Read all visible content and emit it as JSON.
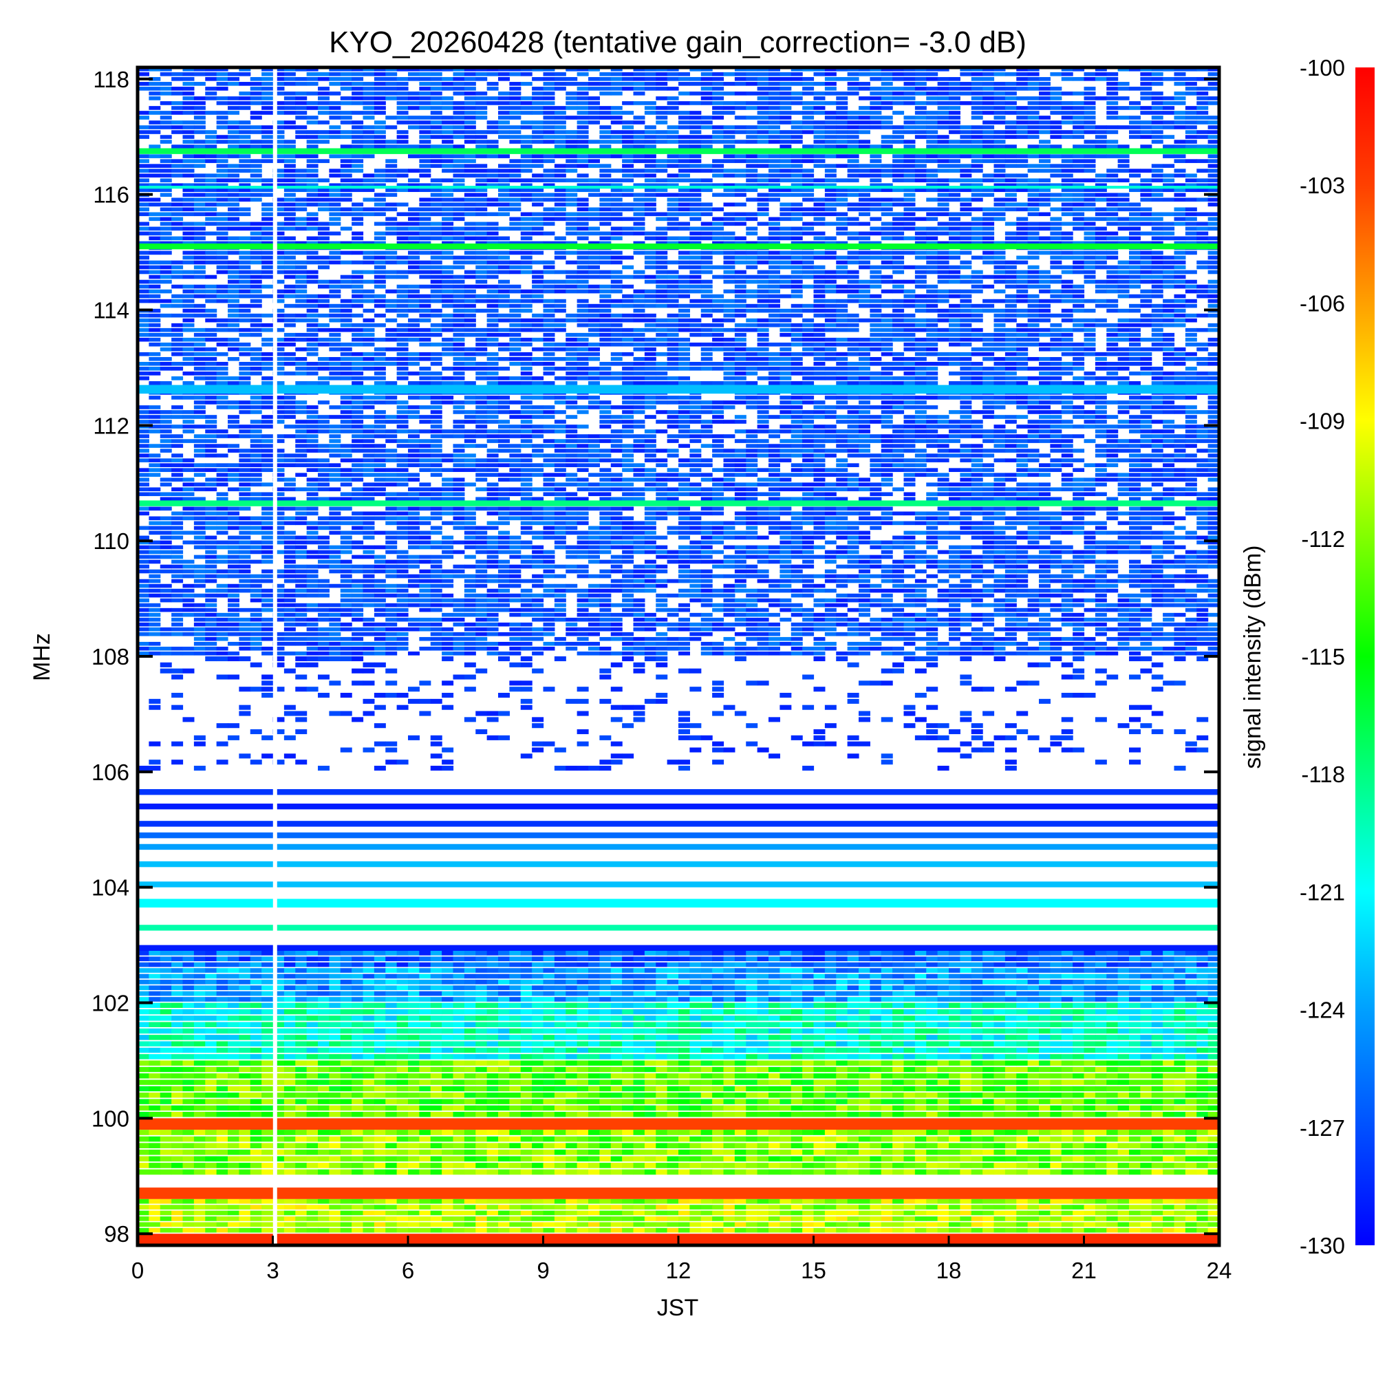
{
  "chart_data": {
    "type": "heatmap",
    "title": "KYO_20260428 (tentative gain_correction= -3.0 dB)",
    "xlabel": "JST",
    "ylabel": "MHz",
    "colorbar_label": "signal intensity (dBm)",
    "xlim": [
      0,
      24
    ],
    "ylim": [
      97.8,
      118.2
    ],
    "x_ticks": [
      0,
      3,
      6,
      9,
      12,
      15,
      18,
      21,
      24
    ],
    "y_ticks": [
      98,
      100,
      102,
      104,
      106,
      108,
      110,
      112,
      114,
      116,
      118
    ],
    "colorbar_range": [
      -130,
      -100
    ],
    "colorbar_ticks": [
      -100,
      -103,
      -106,
      -109,
      -112,
      -115,
      -118,
      -121,
      -124,
      -127,
      -130
    ],
    "colormap": [
      "#0000ff",
      "#0050ff",
      "#00a0ff",
      "#00ffff",
      "#00ff80",
      "#00ff00",
      "#80ff00",
      "#ffff00",
      "#ffa000",
      "#ff4000",
      "#ff0000"
    ],
    "data_gap_hour": 3.05,
    "bands": [
      {
        "f0": 108.0,
        "f1": 118.2,
        "level": -129,
        "style": "speckle"
      },
      {
        "f0": 116.7,
        "f1": 116.8,
        "level": -117,
        "style": "solid"
      },
      {
        "f0": 116.1,
        "f1": 116.15,
        "level": -120,
        "style": "solid"
      },
      {
        "f0": 115.05,
        "f1": 115.15,
        "level": -116,
        "style": "solid"
      },
      {
        "f0": 112.55,
        "f1": 112.7,
        "level": -123,
        "style": "solid"
      },
      {
        "f0": 110.6,
        "f1": 110.7,
        "level": -118,
        "style": "solid"
      },
      {
        "f0": 106.0,
        "f1": 108.0,
        "level": -129,
        "style": "sparse"
      },
      {
        "f0": 105.6,
        "f1": 105.7,
        "level": -128,
        "style": "solid"
      },
      {
        "f0": 105.35,
        "f1": 105.45,
        "level": -129,
        "style": "solid"
      },
      {
        "f0": 105.05,
        "f1": 105.15,
        "level": -128,
        "style": "solid"
      },
      {
        "f0": 104.85,
        "f1": 104.95,
        "level": -126,
        "style": "solid"
      },
      {
        "f0": 104.65,
        "f1": 104.75,
        "level": -124,
        "style": "solid"
      },
      {
        "f0": 104.35,
        "f1": 104.45,
        "level": -123,
        "style": "solid"
      },
      {
        "f0": 104.0,
        "f1": 104.1,
        "level": -123,
        "style": "solid"
      },
      {
        "f0": 103.65,
        "f1": 103.8,
        "level": -121,
        "style": "solid"
      },
      {
        "f0": 103.25,
        "f1": 103.35,
        "level": -119,
        "style": "solid"
      },
      {
        "f0": 102.9,
        "f1": 103.0,
        "level": -129,
        "style": "solid"
      },
      {
        "f0": 102.6,
        "f1": 102.9,
        "level": -126,
        "style": "dense"
      },
      {
        "f0": 102.0,
        "f1": 102.6,
        "level": -124,
        "style": "dense"
      },
      {
        "f0": 101.0,
        "f1": 102.0,
        "level": -120,
        "style": "dense"
      },
      {
        "f0": 100.0,
        "f1": 101.0,
        "level": -113,
        "style": "dense"
      },
      {
        "f0": 99.8,
        "f1": 100.0,
        "level": -103,
        "style": "solid"
      },
      {
        "f0": 99.0,
        "f1": 99.8,
        "level": -112,
        "style": "dense"
      },
      {
        "f0": 98.6,
        "f1": 98.8,
        "level": -103,
        "style": "solid"
      },
      {
        "f0": 98.0,
        "f1": 98.6,
        "level": -111,
        "style": "dense"
      },
      {
        "f0": 97.8,
        "f1": 98.0,
        "level": -102,
        "style": "solid"
      }
    ]
  }
}
